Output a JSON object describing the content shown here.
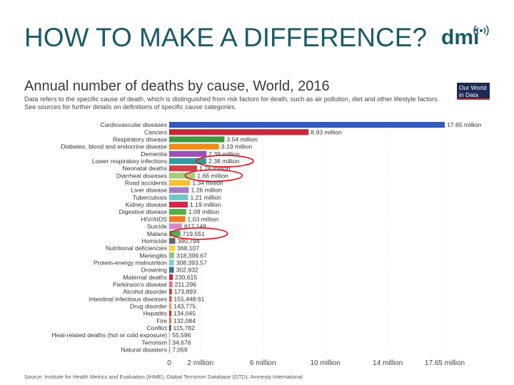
{
  "slide": {
    "title": "HOW TO MAKE A DIFFERENCE?",
    "brand": "dmi",
    "accent": "#1c5a67"
  },
  "owid_logo": {
    "line1": "Our World",
    "line2": "in Data"
  },
  "chart_data": {
    "type": "bar",
    "orientation": "horizontal",
    "title": "Annual number of deaths by cause, World, 2016",
    "subtitle": "Data refers to the specific cause of death, which is distinguished from risk factors for death, such as air pollution, diet and other lifestyle factors. See sources for further details on definitions of specific cause categories.",
    "source": "Source: Institute for Health Metrics and Evaluation (IHME); Global Terrorism Database (GTD); Amnesty International",
    "xlim": [
      0,
      17650000
    ],
    "xticks": [
      {
        "value": 0,
        "label": "0"
      },
      {
        "value": 2000000,
        "label": "2 million"
      },
      {
        "value": 6000000,
        "label": "6 million"
      },
      {
        "value": 10000000,
        "label": "10 million"
      },
      {
        "value": 14000000,
        "label": "14 million"
      },
      {
        "value": 17650000,
        "label": "17.65 million"
      }
    ],
    "bars": [
      {
        "category": "Cardiovascular diseases",
        "value": 17650000,
        "label": "17.65 million",
        "color": "#3558b8"
      },
      {
        "category": "Cancers",
        "value": 8930000,
        "label": "8.93 million",
        "color": "#c8283a"
      },
      {
        "category": "Respiratory disease",
        "value": 3540000,
        "label": "3.54 million",
        "color": "#3f9a3f"
      },
      {
        "category": "Diabetes, blood and endocrine disease",
        "value": 3190000,
        "label": "3.19 million",
        "color": "#f08c1e"
      },
      {
        "category": "Dementia",
        "value": 2390000,
        "label": "2.39 million",
        "color": "#9a4fb5"
      },
      {
        "category": "Lower respiratory infections",
        "value": 2380000,
        "label": "2.38 million",
        "color": "#2e9c9c"
      },
      {
        "category": "Neonatal deaths",
        "value": 1780000,
        "label": "1.78 million",
        "color": "#d0424a"
      },
      {
        "category": "Diarrheal diseases",
        "value": 1660000,
        "label": "1.66 million",
        "color": "#a3cf7a"
      },
      {
        "category": "Road accidents",
        "value": 1340000,
        "label": "1.34 million",
        "color": "#f6c233"
      },
      {
        "category": "Liver disease",
        "value": 1260000,
        "label": "1.26 million",
        "color": "#a27cc5"
      },
      {
        "category": "Tuberculosis",
        "value": 1210000,
        "label": "1.21 million",
        "color": "#6fc7c7"
      },
      {
        "category": "Kidney disease",
        "value": 1190000,
        "label": "1.19 million",
        "color": "#cf2a47"
      },
      {
        "category": "Digestive disease",
        "value": 1090000,
        "label": "1.09 million",
        "color": "#55b043"
      },
      {
        "category": "HIV/AIDS",
        "value": 1030000,
        "label": "1.03 million",
        "color": "#f07a22"
      },
      {
        "category": "Suicide",
        "value": 817148,
        "label": "817,148",
        "color": "#d989c8"
      },
      {
        "category": "Malaria",
        "value": 719551,
        "label": "719,551",
        "color": "#4caf50"
      },
      {
        "category": "Homicide",
        "value": 390794,
        "label": "390,794",
        "color": "#666666"
      },
      {
        "category": "Nutritional deficiencies",
        "value": 368107,
        "label": "368,107",
        "color": "#f2d64b"
      },
      {
        "category": "Meningitis",
        "value": 318399.67,
        "label": "318,399.67",
        "color": "#8bc78b"
      },
      {
        "category": "Protein-energy malnutrition",
        "value": 308393.57,
        "label": "308,393.57",
        "color": "#7fd0d0"
      },
      {
        "category": "Drowning",
        "value": 302932,
        "label": "302,932",
        "color": "#3f6f8f"
      },
      {
        "category": "Maternal deaths",
        "value": 230615,
        "label": "230,615",
        "color": "#c8283a"
      },
      {
        "category": "Parkinson's disease",
        "value": 211296,
        "label": "211,296",
        "color": "#e66f8a"
      },
      {
        "category": "Alcohol disorder",
        "value": 173893,
        "label": "173,893",
        "color": "#d0424a"
      },
      {
        "category": "Intestinal infectious diseases",
        "value": 155448.61,
        "label": "155,448.61",
        "color": "#e6585f"
      },
      {
        "category": "Drug disorder",
        "value": 143775,
        "label": "143,775",
        "color": "#f0a060"
      },
      {
        "category": "Hepatitis",
        "value": 134045,
        "label": "134,045",
        "color": "#c8283a"
      },
      {
        "category": "Fire",
        "value": 132084,
        "label": "132,084",
        "color": "#e07a3a"
      },
      {
        "category": "Conflict",
        "value": 115782,
        "label": "115,782",
        "color": "#555555"
      },
      {
        "category": "Heat-related deaths (hot or cold exposure)",
        "value": 55596,
        "label": "55,596",
        "color": "#f0c070"
      },
      {
        "category": "Terrorism",
        "value": 34676,
        "label": "34,676",
        "color": "#888888"
      },
      {
        "category": "Natural disasters",
        "value": 7059,
        "label": "7,059",
        "color": "#999999"
      }
    ],
    "highlighted": [
      "Lower respiratory infections",
      "Diarrheal diseases",
      "Malaria"
    ],
    "highlight_color": "#e0101a"
  }
}
